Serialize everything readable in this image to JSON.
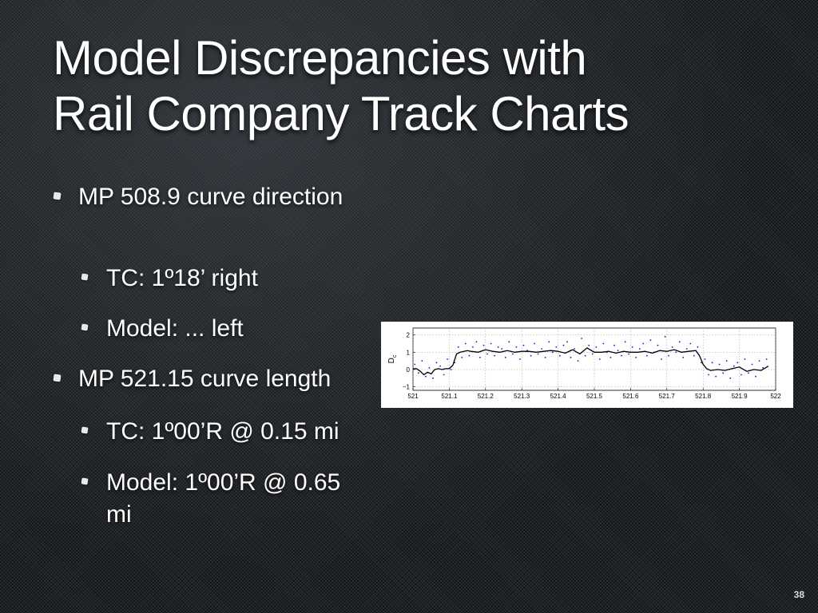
{
  "slide": {
    "title_line1": "Model Discrepancies with",
    "title_line2": "Rail Company Track Charts",
    "number": "38"
  },
  "bullets": [
    {
      "level": 1,
      "text": "MP 508.9 curve direction"
    },
    {
      "level": 2,
      "text": "TC: 1º18’ right"
    },
    {
      "level": 2,
      "text": "Model: ... left"
    },
    {
      "level": 1,
      "text": "MP 521.15 curve length"
    },
    {
      "level": 2,
      "text": "TC: 1º00’R @ 0.15 mi"
    },
    {
      "level": 2,
      "text": "Model: 1º00’R @ 0.65 mi"
    }
  ],
  "chart_data": {
    "type": "line",
    "ylabel": "D",
    "ylabel_subscript": "c",
    "xlim": [
      521,
      522
    ],
    "ylim": [
      -1.2,
      2.4
    ],
    "x_ticks": [
      521,
      521.1,
      521.2,
      521.3,
      521.4,
      521.5,
      521.6,
      521.7,
      521.8,
      521.9,
      522
    ],
    "x_tick_labels": [
      "521",
      "521.1",
      "521.2",
      "521.3",
      "521.4",
      "521.5",
      "521.6",
      "521.7",
      "521.8",
      "521.9",
      "522"
    ],
    "y_ticks": [
      -1,
      0,
      1,
      2
    ],
    "y_tick_labels": [
      "−1",
      "0",
      "1",
      "2"
    ],
    "grid": true,
    "colors": {
      "line": "#000000",
      "points": "#1a1ad8",
      "grid": "#9a9a9a"
    },
    "series": [
      {
        "style": "line",
        "x": [
          521.0,
          521.01,
          521.02,
          521.03,
          521.04,
          521.05,
          521.06,
          521.07,
          521.08,
          521.09,
          521.1,
          521.11,
          521.12,
          521.13,
          521.14,
          521.15,
          521.16,
          521.18,
          521.2,
          521.22,
          521.24,
          521.26,
          521.28,
          521.3,
          521.32,
          521.34,
          521.36,
          521.38,
          521.4,
          521.42,
          521.44,
          521.46,
          521.48,
          521.5,
          521.52,
          521.54,
          521.56,
          521.58,
          521.6,
          521.62,
          521.64,
          521.66,
          521.68,
          521.7,
          521.72,
          521.74,
          521.76,
          521.78,
          521.79,
          521.8,
          521.81,
          521.82,
          521.84,
          521.86,
          521.88,
          521.9,
          521.92,
          521.94,
          521.96,
          521.98
        ],
        "y": [
          0.05,
          0.05,
          -0.1,
          -0.3,
          -0.15,
          -0.25,
          0.0,
          0.05,
          0.0,
          0.05,
          0.05,
          0.25,
          0.9,
          1.0,
          1.05,
          1.1,
          1.05,
          1.0,
          1.15,
          1.05,
          1.0,
          1.1,
          1.0,
          1.05,
          1.05,
          1.0,
          1.05,
          1.1,
          1.05,
          0.95,
          1.15,
          0.9,
          1.25,
          1.0,
          1.0,
          1.05,
          0.95,
          1.05,
          1.0,
          1.0,
          1.05,
          0.95,
          1.1,
          1.05,
          1.15,
          1.0,
          1.05,
          1.1,
          0.8,
          0.3,
          0.05,
          -0.05,
          0.0,
          -0.05,
          0.05,
          0.15,
          -0.1,
          0.0,
          -0.05,
          0.2
        ]
      },
      {
        "style": "scatter",
        "x": [
          521.005,
          521.015,
          521.025,
          521.035,
          521.045,
          521.055,
          521.065,
          521.075,
          521.085,
          521.095,
          521.105,
          521.115,
          521.125,
          521.135,
          521.145,
          521.155,
          521.165,
          521.175,
          521.185,
          521.195,
          521.205,
          521.215,
          521.225,
          521.235,
          521.245,
          521.255,
          521.265,
          521.275,
          521.285,
          521.295,
          521.305,
          521.315,
          521.325,
          521.335,
          521.345,
          521.355,
          521.365,
          521.375,
          521.385,
          521.395,
          521.405,
          521.415,
          521.425,
          521.435,
          521.445,
          521.455,
          521.465,
          521.475,
          521.485,
          521.495,
          521.505,
          521.515,
          521.525,
          521.535,
          521.545,
          521.555,
          521.565,
          521.575,
          521.585,
          521.595,
          521.605,
          521.615,
          521.625,
          521.635,
          521.645,
          521.655,
          521.665,
          521.675,
          521.685,
          521.695,
          521.705,
          521.715,
          521.725,
          521.735,
          521.745,
          521.755,
          521.765,
          521.775,
          521.785,
          521.795,
          521.805,
          521.815,
          521.825,
          521.835,
          521.845,
          521.855,
          521.865,
          521.875,
          521.885,
          521.895,
          521.905,
          521.915,
          521.925,
          521.935,
          521.945,
          521.955,
          521.965,
          521.975
        ],
        "y": [
          0.3,
          -0.2,
          0.5,
          -0.4,
          0.1,
          -0.5,
          0.4,
          0.2,
          -0.3,
          0.6,
          0.0,
          0.4,
          1.3,
          0.7,
          1.5,
          0.8,
          1.3,
          1.6,
          0.7,
          1.4,
          0.9,
          1.5,
          0.8,
          1.3,
          1.2,
          0.7,
          1.6,
          0.9,
          1.3,
          0.6,
          1.4,
          1.1,
          0.8,
          1.5,
          0.9,
          1.2,
          0.7,
          1.6,
          1.0,
          1.3,
          0.8,
          1.4,
          1.6,
          0.7,
          1.2,
          0.5,
          1.8,
          0.8,
          1.4,
          0.9,
          1.3,
          0.6,
          1.5,
          1.0,
          0.7,
          1.4,
          1.1,
          0.8,
          1.6,
          0.9,
          1.3,
          0.7,
          1.2,
          1.5,
          0.8,
          1.7,
          1.0,
          1.4,
          0.6,
          1.9,
          0.8,
          1.3,
          1.0,
          1.6,
          0.7,
          1.2,
          1.5,
          0.8,
          1.3,
          0.4,
          0.6,
          -0.3,
          0.4,
          -0.4,
          0.3,
          -0.2,
          0.5,
          -0.5,
          0.2,
          0.4,
          -0.3,
          0.6,
          -0.2,
          0.3,
          -0.4,
          0.5,
          0.1,
          0.6
        ]
      }
    ]
  }
}
